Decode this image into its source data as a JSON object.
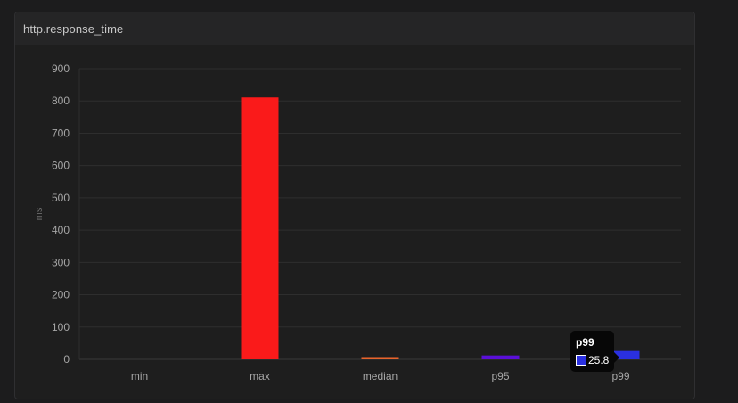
{
  "panel": {
    "title": "http.response_time"
  },
  "chart_data": {
    "type": "bar",
    "categories": [
      "min",
      "max",
      "median",
      "p95",
      "p99"
    ],
    "values": [
      0,
      811,
      7,
      12,
      25.8
    ],
    "colors": [
      "#ff1a1a",
      "#fa1a1a",
      "#e8642c",
      "#5a10d8",
      "#2a30e0"
    ],
    "ylabel": "ms",
    "ylim": [
      0,
      900
    ],
    "yticks": [
      0,
      100,
      200,
      300,
      400,
      500,
      600,
      700,
      800,
      900
    ],
    "grid": true,
    "legend": "none"
  },
  "tooltip": {
    "category": "p99",
    "value": "25.8",
    "swatch_color": "#2a30e0"
  }
}
